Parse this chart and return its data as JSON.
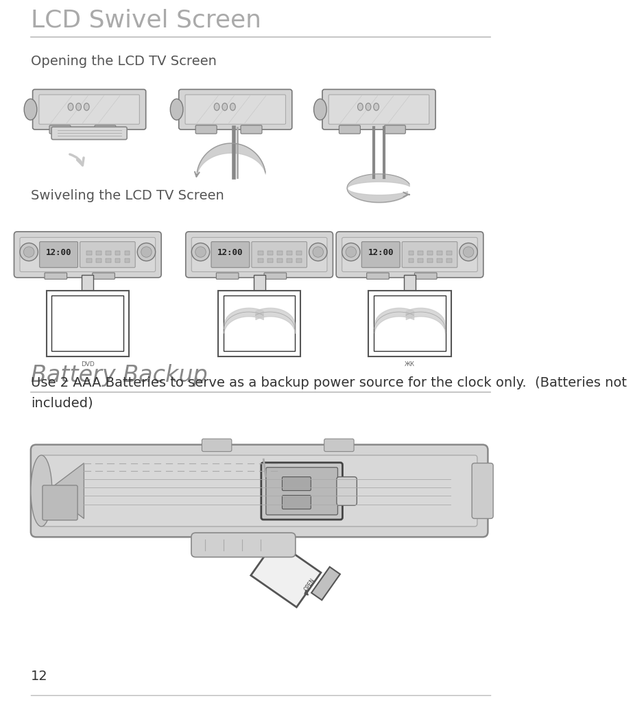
{
  "title1": "LCD Swivel Screen",
  "title2": "Battery Backup",
  "subtitle1": "Opening the LCD TV Screen",
  "subtitle2": "Swiveling the LCD TV Screen",
  "body_text": "Use 2 AAA Batteries to serve as a backup power source for the clock only.  (Batteries not\nincluded)",
  "page_number": "12",
  "bg_color": "#ffffff",
  "title1_color": "#aaaaaa",
  "title2_color": "#888888",
  "text_color": "#333333",
  "line_color": "#bbbbbb",
  "subtitle_color": "#555555",
  "title1_fontsize": 26,
  "title2_fontsize": 24,
  "subtitle_fontsize": 14,
  "body_fontsize": 14,
  "page_fontsize": 14,
  "device_gray": "#d0d0d0",
  "device_dark": "#888888",
  "device_edge": "#777777",
  "screen_fill": "#ffffff",
  "arrow_gray": "#c8c8c8"
}
